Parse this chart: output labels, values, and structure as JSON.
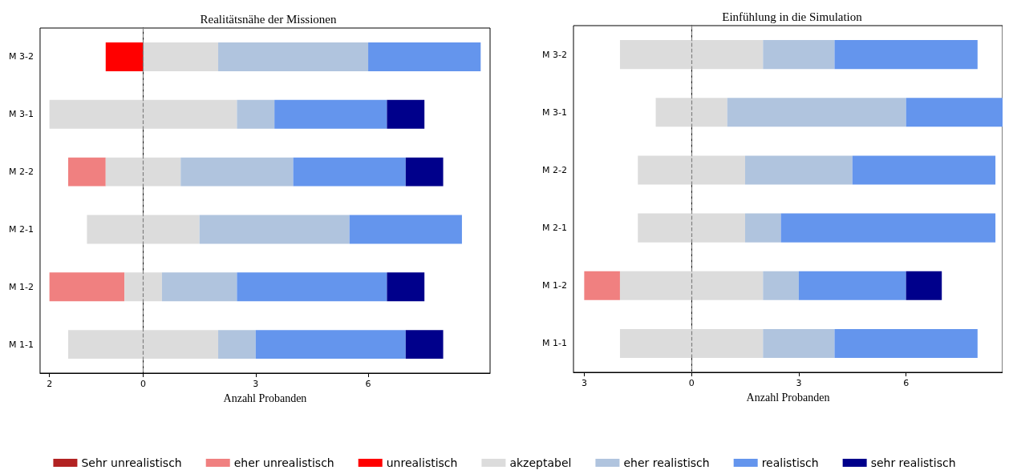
{
  "chart_data": [
    {
      "type": "bar",
      "orientation": "horizontal",
      "title": "Realitätsnähe der Missionen",
      "xlabel": "Anzahl Probanden",
      "categories": [
        "M 3-2",
        "M 3-1",
        "M 2-2",
        "M 2-1",
        "M 1-2",
        "M 1-1"
      ],
      "xlim": [
        -2.75,
        9.25
      ],
      "xticks": [
        {
          "value": -2.5,
          "label": "2"
        },
        0,
        3,
        6
      ],
      "grid": false,
      "legend": "bottom",
      "ref_lines": [
        {
          "axis": "x",
          "value": 0,
          "color": "#808080",
          "line_style": "dashed"
        }
      ],
      "series": [
        {
          "name": "Sehr unrealistisch",
          "color": "#b22222",
          "values": [
            null,
            null,
            null,
            null,
            null,
            null
          ]
        },
        {
          "name": "eher unrealistisch",
          "color": "#f08080",
          "values": [
            null,
            null,
            1,
            null,
            2,
            null
          ],
          "base": [
            null,
            null,
            -2,
            null,
            -2.5,
            null
          ]
        },
        {
          "name": "unrealistisch",
          "color": "#ff0000",
          "values": [
            1,
            null,
            null,
            null,
            null,
            null
          ],
          "base": [
            -1,
            null,
            null,
            null,
            null,
            null
          ]
        },
        {
          "name": "akzeptabel",
          "color": "#dcdcdc",
          "values": [
            2,
            5,
            2,
            3,
            1,
            4
          ],
          "base": [
            0,
            -2.5,
            -1,
            -1.5,
            -0.5,
            -2
          ]
        },
        {
          "name": "eher realistisch",
          "color": "#b0c4de",
          "values": [
            4,
            1,
            3,
            4,
            2,
            1
          ],
          "base": [
            2,
            2.5,
            1,
            1.5,
            0.5,
            2
          ]
        },
        {
          "name": "realistisch",
          "color": "#6495ed",
          "values": [
            3,
            3,
            3,
            3,
            4,
            4
          ],
          "base": [
            6,
            3.5,
            4,
            5.5,
            2.5,
            3
          ]
        },
        {
          "name": "sehr realistisch",
          "color": "#00008b",
          "values": [
            null,
            1,
            1,
            null,
            1,
            1
          ],
          "base": [
            null,
            6.5,
            7,
            null,
            6.5,
            7
          ]
        }
      ]
    },
    {
      "type": "bar",
      "orientation": "horizontal",
      "title": "Einfühlung in die Simulation",
      "xlabel": "Anzahl Probanden",
      "categories": [
        "M 3-2",
        "M 3-1",
        "M 2-2",
        "M 2-1",
        "M 1-2",
        "M 1-1"
      ],
      "xlim": [
        -3.3,
        8.7
      ],
      "xticks": [
        {
          "value": -3,
          "label": "3"
        },
        0,
        3,
        6
      ],
      "grid": false,
      "ref_lines": [
        {
          "axis": "x",
          "value": 0,
          "color": "#808080",
          "line_style": "dashed"
        }
      ],
      "series": [
        {
          "color": "#f08080",
          "values": [
            null,
            null,
            null,
            null,
            1,
            null
          ],
          "base": [
            null,
            null,
            null,
            null,
            -3,
            null
          ]
        },
        {
          "color": "#dcdcdc",
          "values": [
            4,
            2,
            3,
            3,
            4,
            4
          ],
          "base": [
            -2,
            -1,
            -1.5,
            -1.5,
            -2,
            -2
          ]
        },
        {
          "color": "#b0c4de",
          "values": [
            2,
            5,
            3,
            1,
            1,
            2
          ],
          "base": [
            2,
            1,
            1.5,
            1.5,
            2,
            2
          ]
        },
        {
          "color": "#6495ed",
          "values": [
            4,
            2.7,
            4,
            6,
            3,
            4
          ],
          "base": [
            4,
            6,
            4.5,
            2.5,
            3,
            4
          ]
        },
        {
          "color": "#00008b",
          "values": [
            null,
            null,
            null,
            null,
            1,
            null
          ],
          "base": [
            null,
            null,
            null,
            null,
            6,
            null
          ]
        }
      ]
    }
  ]
}
